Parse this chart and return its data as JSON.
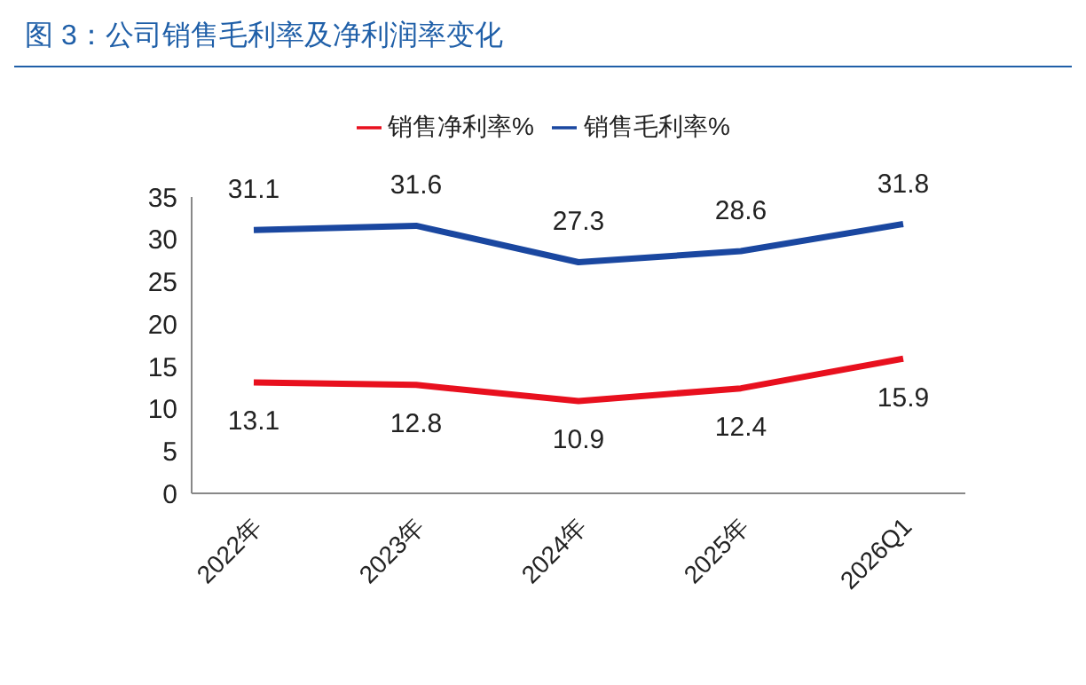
{
  "chart_data": {
    "type": "line",
    "title": "图 3：公司销售毛利率及净利润率变化",
    "categories": [
      "2022年",
      "2023年",
      "2024年",
      "2025年",
      "2026Q1"
    ],
    "series": [
      {
        "name": "销售毛利率%",
        "color": "#1a47a0",
        "values": [
          31.1,
          31.6,
          27.3,
          28.6,
          31.8
        ]
      },
      {
        "name": "销售净利率%",
        "color": "#e8101e",
        "values": [
          13.1,
          12.8,
          10.9,
          12.4,
          15.9
        ]
      }
    ],
    "ylim": [
      0,
      35
    ],
    "yticks": [
      0,
      5,
      10,
      15,
      20,
      25,
      30,
      35
    ],
    "grid": false,
    "legend": "top",
    "marker": "none",
    "line_style": "solid",
    "data_labels": true
  }
}
